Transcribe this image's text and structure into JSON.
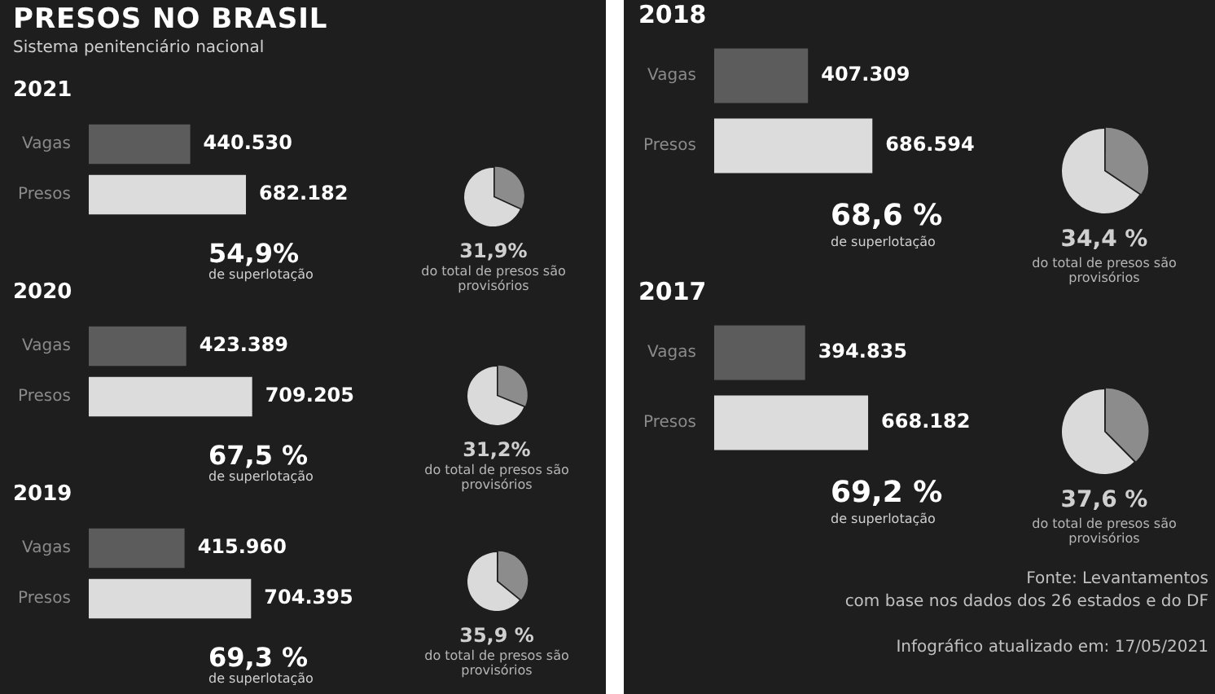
{
  "chart_data": [
    {
      "type": "other",
      "title": "PRESOS NO BRASIL",
      "subtitle": "Sistema penitenciário nacional"
    },
    {
      "type": "bar",
      "orientation": "horizontal",
      "title": "2021",
      "categories": [
        "Vagas",
        "Presos"
      ],
      "values": [
        440530,
        682182
      ],
      "colors": [
        "#5c5c5c",
        "#dcdcdc"
      ],
      "value_labels": [
        "440.530",
        "682.182"
      ],
      "annotations": [
        "54,9%",
        "de superlotação"
      ]
    },
    {
      "type": "pie",
      "categories": [
        null,
        null
      ],
      "values": [
        31.9,
        68.1
      ],
      "colors": [
        "#8c8c8c",
        "#dadada"
      ],
      "annotations": [
        "31,9%",
        "do total de presos são provisórios"
      ]
    },
    {
      "type": "bar",
      "orientation": "horizontal",
      "title": "2020",
      "categories": [
        "Vagas",
        "Presos"
      ],
      "values": [
        423389,
        709205
      ],
      "colors": [
        "#5c5c5c",
        "#dcdcdc"
      ],
      "value_labels": [
        "423.389",
        "709.205"
      ],
      "annotations": [
        "67,5 %",
        "de superlotação"
      ]
    },
    {
      "type": "pie",
      "categories": [
        null,
        null
      ],
      "values": [
        31.2,
        68.8
      ],
      "colors": [
        "#8c8c8c",
        "#dadada"
      ],
      "annotations": [
        "31,2%",
        "do total de presos são provisórios"
      ]
    },
    {
      "type": "bar",
      "orientation": "horizontal",
      "title": "2019",
      "categories": [
        "Vagas",
        "Presos"
      ],
      "values": [
        415960,
        704395
      ],
      "colors": [
        "#5c5c5c",
        "#dcdcdc"
      ],
      "value_labels": [
        "415.960",
        "704.395"
      ],
      "annotations": [
        "69,3 %",
        "de superlotação"
      ]
    },
    {
      "type": "pie",
      "categories": [
        null,
        null
      ],
      "values": [
        35.9,
        64.1
      ],
      "colors": [
        "#8c8c8c",
        "#dadada"
      ],
      "annotations": [
        "35,9 %",
        "do total de presos são provisórios"
      ]
    },
    {
      "type": "bar",
      "orientation": "horizontal",
      "title": "2018",
      "categories": [
        "Vagas",
        "Presos"
      ],
      "values": [
        407309,
        686594
      ],
      "colors": [
        "#5c5c5c",
        "#dcdcdc"
      ],
      "value_labels": [
        "407.309",
        "686.594"
      ],
      "annotations": [
        "68,6 %",
        "de superlotação"
      ]
    },
    {
      "type": "pie",
      "categories": [
        null,
        null
      ],
      "values": [
        34.4,
        65.6
      ],
      "colors": [
        "#8c8c8c",
        "#dadada"
      ],
      "annotations": [
        "34,4 %",
        "do total de presos são provisórios"
      ]
    },
    {
      "type": "bar",
      "orientation": "horizontal",
      "title": "2017",
      "categories": [
        "Vagas",
        "Presos"
      ],
      "values": [
        394835,
        668182
      ],
      "colors": [
        "#5c5c5c",
        "#dcdcdc"
      ],
      "value_labels": [
        "394.835",
        "668.182"
      ],
      "annotations": [
        "69,2 %",
        "de superlotação"
      ]
    },
    {
      "type": "pie",
      "categories": [
        null,
        null
      ],
      "values": [
        37.6,
        62.4
      ],
      "colors": [
        "#8c8c8c",
        "#dadada"
      ],
      "annotations": [
        "37,6 %",
        "do total de presos são provisórios"
      ]
    },
    {
      "type": "other",
      "annotations": [
        "Fonte: Levantamentos",
        "com base nos dados dos 26 estados e do DF",
        "Infográfico atualizado em: 17/05/2021"
      ]
    }
  ]
}
